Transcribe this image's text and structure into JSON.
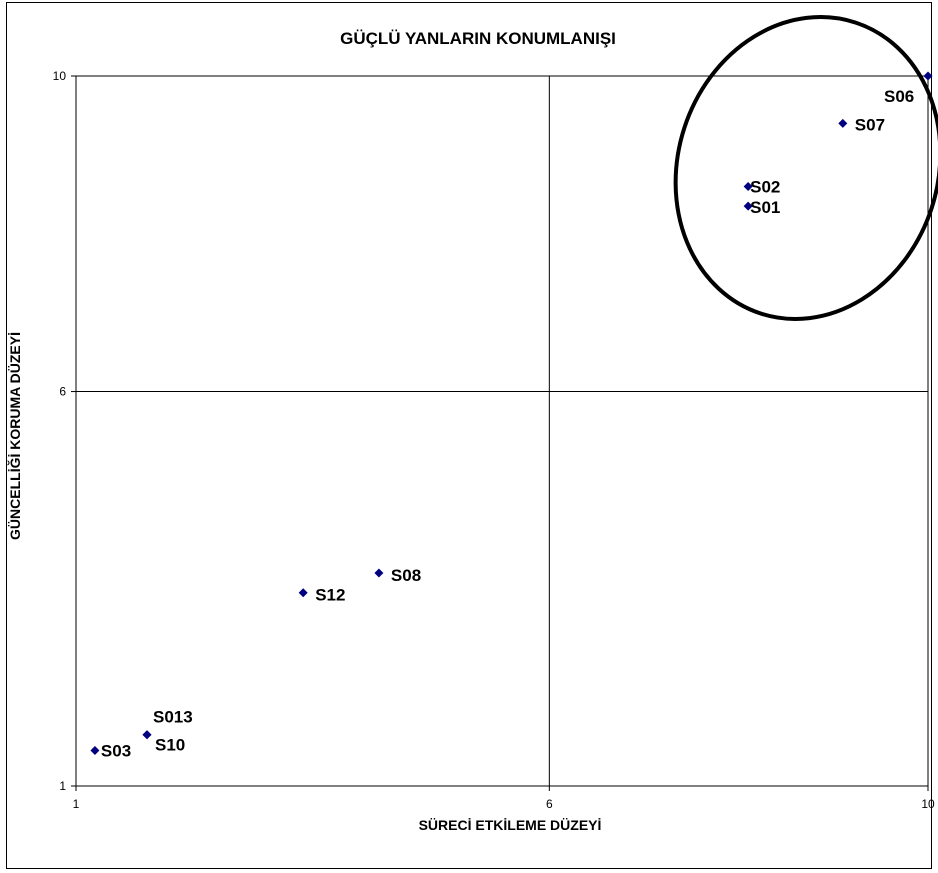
{
  "chart_data": {
    "type": "scatter",
    "title": "GÜÇLÜ YANLARIN KONUMLANIŞI",
    "xlabel": "SÜRECİ ETKİLEME DÜZEYİ",
    "ylabel": "GÜNCELLİĞİ KORUMA DÜZEYİ",
    "xlim": [
      1,
      10
    ],
    "ylim": [
      1,
      10
    ],
    "xticks": [
      "1",
      "6",
      "10"
    ],
    "yticks": [
      "1",
      "6",
      "10"
    ],
    "grid": "quadrant lines at x=6 and y=6",
    "marker_color": "#000080",
    "highlight": "ellipse around S01, S02, S06, S07",
    "points": [
      {
        "label": "S06",
        "x": 10.0,
        "y": 10.0
      },
      {
        "label": "S07",
        "x": 9.1,
        "y": 9.4
      },
      {
        "label": "S02",
        "x": 8.1,
        "y": 8.6
      },
      {
        "label": "S01",
        "x": 8.1,
        "y": 8.35
      },
      {
        "label": "S08",
        "x": 4.2,
        "y": 3.7
      },
      {
        "label": "S12",
        "x": 3.4,
        "y": 3.45
      },
      {
        "label": "S013",
        "x": 1.75,
        "y": 1.65
      },
      {
        "label": "S10",
        "x": 1.75,
        "y": 1.65
      },
      {
        "label": "S03",
        "x": 1.2,
        "y": 1.45
      }
    ]
  }
}
